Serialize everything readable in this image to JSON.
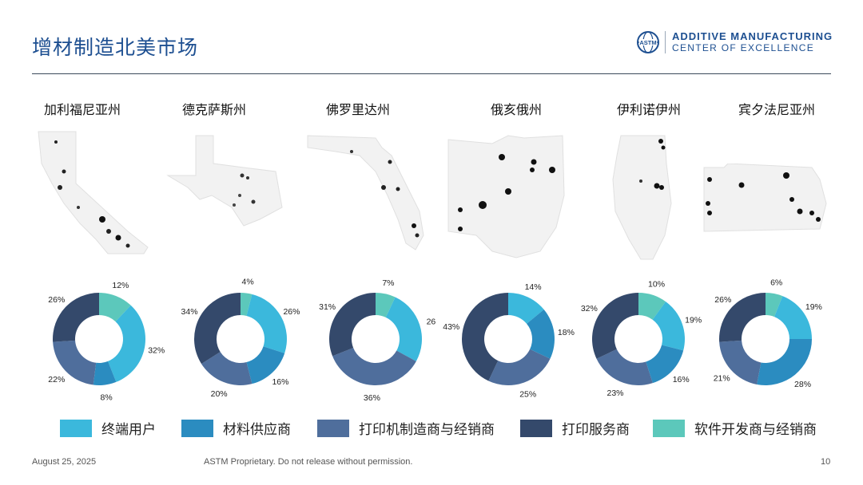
{
  "header": {
    "title": "增材制造北美市场",
    "logo_line1": "ADDITIVE MANUFACTURING",
    "logo_line2": "CENTER OF EXCELLENCE",
    "logo_mark": "ASTM"
  },
  "colors": {
    "end_users": "#3bb8dc",
    "material_suppliers": "#2b8cc0",
    "printer_makers": "#4f6e9c",
    "print_services": "#34496b",
    "software_devs": "#5cc8bb"
  },
  "legend": [
    {
      "label": "终端用户",
      "color": "#3bb8dc"
    },
    {
      "label": "材料供应商",
      "color": "#2b8cc0"
    },
    {
      "label": "打印机制造商与经销商",
      "color": "#4f6e9c"
    },
    {
      "label": "打印服务商",
      "color": "#34496b"
    },
    {
      "label": "软件开发商与经销商",
      "color": "#5cc8bb"
    }
  ],
  "chart_data": [
    {
      "type": "pie",
      "donut": true,
      "title": "加利福尼亚州",
      "labels": [
        "终端用户",
        "材料供应商",
        "打印机制造商与经销商",
        "打印服务商",
        "软件开发商与经销商"
      ],
      "values": [
        32,
        8,
        22,
        26,
        12
      ],
      "value_labels": [
        "32%",
        "8%",
        "22%",
        "26%",
        "12%"
      ]
    },
    {
      "type": "pie",
      "donut": true,
      "title": "德克萨斯州",
      "labels": [
        "终端用户",
        "材料供应商",
        "打印机制造商与经销商",
        "打印服务商",
        "软件开发商与经销商"
      ],
      "values": [
        26,
        16,
        20,
        34,
        4
      ],
      "value_labels": [
        "26%",
        "16%",
        "20%",
        "34%",
        "4%"
      ]
    },
    {
      "type": "pie",
      "donut": true,
      "title": "佛罗里达州",
      "labels": [
        "终端用户",
        "材料供应商",
        "打印机制造商与经销商",
        "打印服务商",
        "软件开发商与经销商"
      ],
      "values": [
        26,
        0,
        36,
        31,
        7
      ],
      "value_labels": [
        "26",
        "",
        "36%",
        "31%",
        "7%"
      ]
    },
    {
      "type": "pie",
      "donut": true,
      "title": "俄亥俄州",
      "labels": [
        "终端用户",
        "材料供应商",
        "打印机制造商与经销商",
        "打印服务商",
        "软件开发商与经销商"
      ],
      "values": [
        14,
        18,
        25,
        43,
        0
      ],
      "value_labels": [
        "14%",
        "18%",
        "25%",
        "43%",
        ""
      ]
    },
    {
      "type": "pie",
      "donut": true,
      "title": "伊利诺伊州",
      "labels": [
        "终端用户",
        "材料供应商",
        "打印机制造商与经销商",
        "打印服务商",
        "软件开发商与经销商"
      ],
      "values": [
        19,
        16,
        23,
        32,
        10
      ],
      "value_labels": [
        "19%",
        "16%",
        "23%",
        "32%",
        "10%"
      ]
    },
    {
      "type": "pie",
      "donut": true,
      "title": "宾夕法尼亚州",
      "labels": [
        "终端用户",
        "材料供应商",
        "打印机制造商与经销商",
        "打印服务商",
        "软件开发商与经销商"
      ],
      "values": [
        19,
        28,
        21,
        26,
        6
      ],
      "value_labels": [
        "19%",
        "28%",
        "21%",
        "26%",
        "6%"
      ]
    }
  ],
  "footer": {
    "date": "August 25, 2025",
    "notice": "ASTM Proprietary. Do not release without permission.",
    "page": "10"
  }
}
